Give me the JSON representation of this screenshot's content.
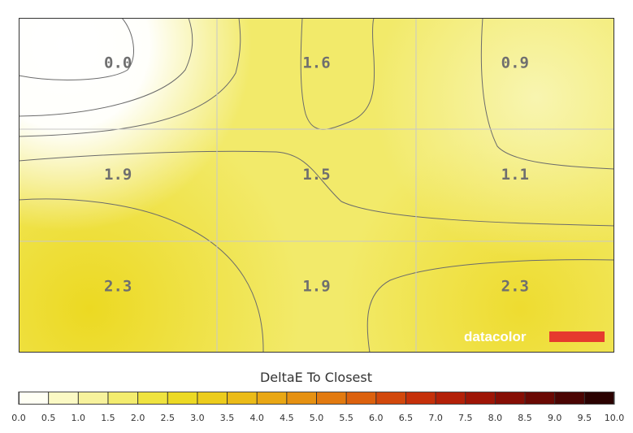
{
  "chart_data": {
    "type": "heatmap",
    "title": "",
    "metric_label": "DeltaE To Closest",
    "grid": {
      "rows": 3,
      "cols": 3
    },
    "cells": [
      {
        "row": 0,
        "col": 0,
        "value": 0.0,
        "label": "0.0"
      },
      {
        "row": 0,
        "col": 1,
        "value": 1.6,
        "label": "1.6"
      },
      {
        "row": 0,
        "col": 2,
        "value": 0.9,
        "label": "0.9"
      },
      {
        "row": 1,
        "col": 0,
        "value": 1.9,
        "label": "1.9"
      },
      {
        "row": 1,
        "col": 1,
        "value": 1.5,
        "label": "1.5"
      },
      {
        "row": 1,
        "col": 2,
        "value": 1.1,
        "label": "1.1"
      },
      {
        "row": 2,
        "col": 0,
        "value": 2.3,
        "label": "2.3"
      },
      {
        "row": 2,
        "col": 1,
        "value": 1.9,
        "label": "1.9"
      },
      {
        "row": 2,
        "col": 2,
        "value": 2.3,
        "label": "2.3"
      }
    ],
    "scale": {
      "min": 0.0,
      "max": 10.0,
      "step": 0.5,
      "tick_labels": [
        "0.0",
        "0.5",
        "1.0",
        "1.5",
        "2.0",
        "2.5",
        "3.0",
        "3.5",
        "4.0",
        "4.5",
        "5.0",
        "5.5",
        "6.0",
        "6.5",
        "7.0",
        "7.5",
        "8.0",
        "8.5",
        "9.0",
        "9.5",
        "10.0"
      ],
      "colors": [
        "#fffff4",
        "#fbf9c4",
        "#f7f29c",
        "#f3ec6e",
        "#efe33f",
        "#ecd924",
        "#eccc1c",
        "#ebbb18",
        "#e9a714",
        "#e69112",
        "#e27a10",
        "#dc610e",
        "#d2480c",
        "#c5300a",
        "#b32008",
        "#9e1506",
        "#860e05",
        "#6a0904",
        "#4b0503",
        "#2b0201"
      ]
    },
    "grid_lines": true
  },
  "brand": {
    "name": "datacolor",
    "bar_color": "#e63a2e"
  }
}
